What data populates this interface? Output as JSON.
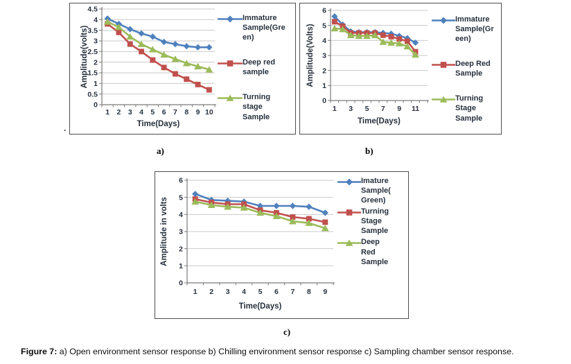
{
  "page": {
    "labels": {
      "a": "a)",
      "b": "b)",
      "c": "c)"
    },
    "caption_prefix": "Figure 7:",
    "caption_text": " a) Open environment sensor response b) Chilling environment sensor response c) Sampling chamber sensor response.",
    "stray_mark": "."
  },
  "colors": {
    "series_blue": "#4F81BD",
    "series_red": "#C0504D",
    "series_green": "#9BBB59",
    "gridline": "#C9C9C9",
    "axis": "#7A7A7A",
    "chart_text": "#27313E"
  },
  "chart_data": [
    {
      "id": "a",
      "type": "line",
      "title": "",
      "xlabel": "Time(Days)",
      "ylabel": "Amplitude(volts)",
      "ylim": [
        0,
        4.5
      ],
      "yticks": [
        0,
        0.5,
        1,
        1.5,
        2,
        2.5,
        3,
        3.5,
        4,
        4.5
      ],
      "slots": 10,
      "x": [
        1,
        2,
        3,
        4,
        5,
        6,
        7,
        8,
        9,
        10
      ],
      "xtick_labels": [
        "1",
        "2",
        "3",
        "4",
        "5",
        "6",
        "7",
        "8",
        "9",
        "10"
      ],
      "grid": true,
      "legend_position": "right",
      "series": [
        {
          "name": "Immature\nSample(Gre\nen)",
          "marker": "diamond",
          "color": "#4F81BD",
          "values": [
            4.05,
            3.8,
            3.55,
            3.35,
            3.2,
            2.95,
            2.85,
            2.75,
            2.7,
            2.7
          ]
        },
        {
          "name": "Deep red\nsample",
          "marker": "square",
          "color": "#C0504D",
          "values": [
            3.8,
            3.4,
            2.85,
            2.5,
            2.1,
            1.75,
            1.45,
            1.2,
            0.95,
            0.7
          ]
        },
        {
          "name": "Turning\nstage\nSample",
          "marker": "triangle",
          "color": "#9BBB59",
          "values": [
            3.9,
            3.65,
            3.2,
            2.85,
            2.6,
            2.35,
            2.15,
            1.95,
            1.8,
            1.65
          ]
        }
      ]
    },
    {
      "id": "b",
      "type": "line",
      "title": "",
      "xlabel": "Time(Days)",
      "ylabel": "Amplitude(Volts)",
      "ylim": [
        0,
        6
      ],
      "yticks": [
        0,
        1,
        2,
        3,
        4,
        5,
        6
      ],
      "slots": 12,
      "x": [
        1,
        2,
        3,
        4,
        5,
        6,
        7,
        8,
        9,
        10,
        11
      ],
      "xtick_labels": [
        "1",
        "",
        "3",
        "",
        "5",
        "",
        "7",
        "",
        "9",
        "",
        "11",
        ""
      ],
      "grid": true,
      "legend_position": "right",
      "series": [
        {
          "name": "Immature\nSample(Gr\neen)",
          "marker": "diamond",
          "color": "#4F81BD",
          "values": [
            5.6,
            5.05,
            4.6,
            4.55,
            4.55,
            4.55,
            4.5,
            4.45,
            4.3,
            4.15,
            3.85
          ]
        },
        {
          "name": "Deep Red\nSample",
          "marker": "square",
          "color": "#C0504D",
          "values": [
            5.25,
            4.95,
            4.5,
            4.5,
            4.5,
            4.5,
            4.35,
            4.25,
            4.1,
            3.95,
            3.25
          ]
        },
        {
          "name": "Turning\nStage\nSample",
          "marker": "triangle",
          "color": "#9BBB59",
          "values": [
            4.8,
            4.75,
            4.35,
            4.3,
            4.3,
            4.35,
            3.9,
            3.85,
            3.8,
            3.6,
            3.05
          ]
        }
      ]
    },
    {
      "id": "c",
      "type": "line",
      "title": "",
      "xlabel": "Time(Days)",
      "ylabel": "Amplitude in volts",
      "ylim": [
        0,
        6
      ],
      "yticks": [
        0,
        1,
        2,
        3,
        4,
        5,
        6
      ],
      "slots": 9,
      "x": [
        1,
        2,
        3,
        4,
        5,
        6,
        7,
        8,
        9
      ],
      "xtick_labels": [
        "1",
        "2",
        "3",
        "4",
        "5",
        "6",
        "7",
        "8",
        "9"
      ],
      "grid": true,
      "legend_position": "right",
      "series": [
        {
          "name": "Imature\nSample(\nGreen)",
          "marker": "diamond",
          "color": "#4F81BD",
          "values": [
            5.2,
            4.85,
            4.8,
            4.75,
            4.5,
            4.5,
            4.5,
            4.45,
            4.1
          ]
        },
        {
          "name": "Turning\nStage\nSample",
          "marker": "square",
          "color": "#C0504D",
          "values": [
            4.9,
            4.7,
            4.6,
            4.6,
            4.25,
            4.1,
            3.85,
            3.75,
            3.55
          ]
        },
        {
          "name": "Deep\nRed\nSample",
          "marker": "triangle",
          "color": "#9BBB59",
          "values": [
            4.75,
            4.55,
            4.45,
            4.4,
            4.1,
            3.9,
            3.6,
            3.5,
            3.2
          ]
        }
      ]
    }
  ]
}
